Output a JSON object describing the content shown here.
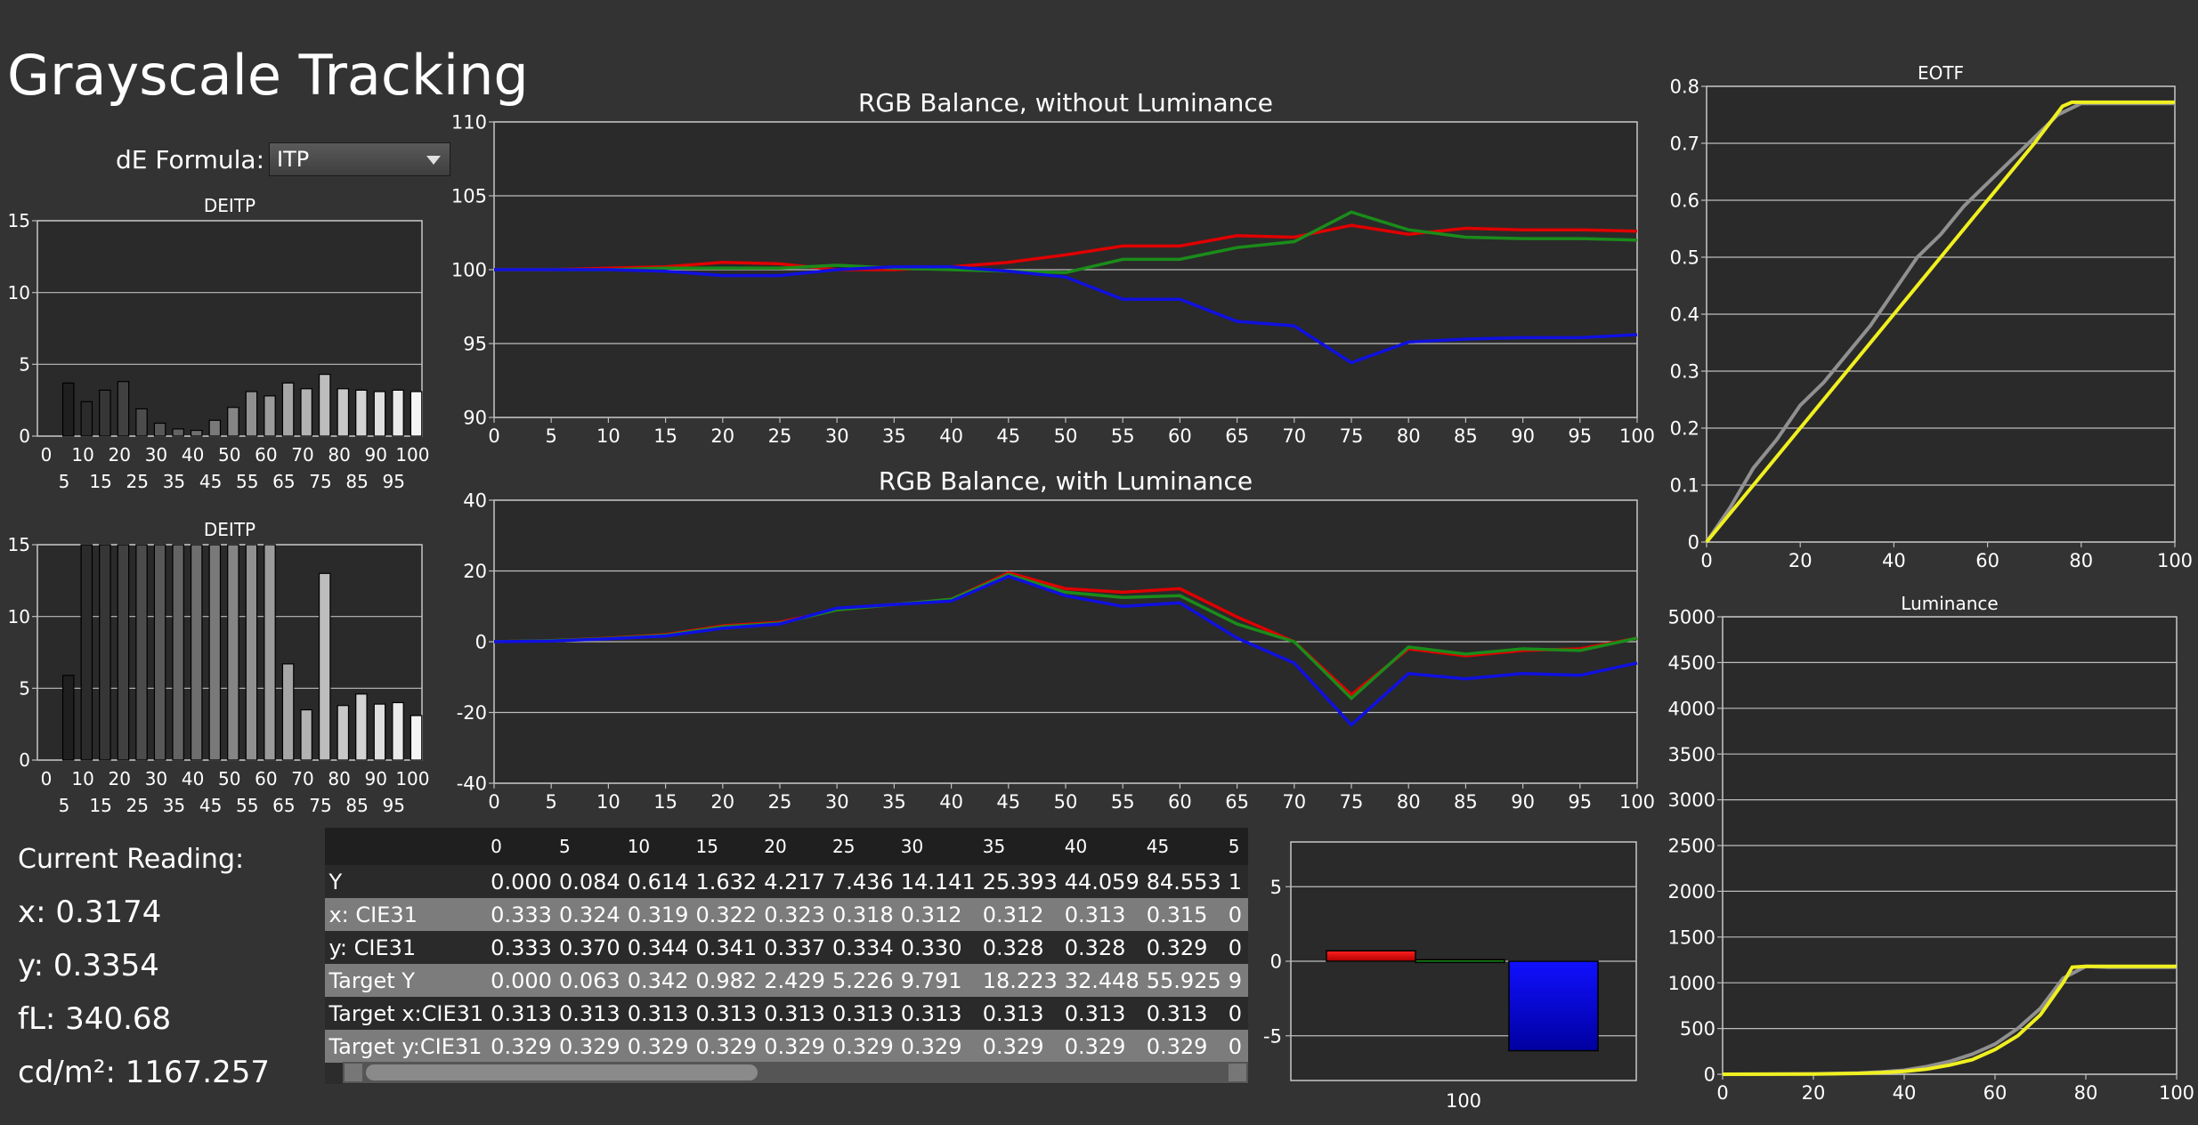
{
  "page": {
    "title": "Grayscale Tracking"
  },
  "de_formula": {
    "label": "dE Formula:",
    "value": "ITP"
  },
  "colors": {
    "red": "#e00000",
    "green": "#1a8c1a",
    "blue": "#1010e0",
    "yellow": "#f0f020",
    "gray": "#909090"
  },
  "current_reading": {
    "label": "Current Reading:",
    "x": "x: 0.3174",
    "y": "y: 0.3354",
    "fl": "fL: 340.68",
    "cdm2": "cd/m²: 1167.257"
  },
  "table": {
    "columns": [
      "0",
      "5",
      "10",
      "15",
      "20",
      "25",
      "30",
      "35",
      "40",
      "45",
      "5"
    ],
    "rows": [
      {
        "label": "Y",
        "values": [
          "0.000",
          "0.084",
          "0.614",
          "1.632",
          "4.217",
          "7.436",
          "14.141",
          "25.393",
          "44.059",
          "84.553",
          "1"
        ]
      },
      {
        "label": "x: CIE31",
        "values": [
          "0.333",
          "0.324",
          "0.319",
          "0.322",
          "0.323",
          "0.318",
          "0.312",
          "0.312",
          "0.313",
          "0.315",
          "0"
        ]
      },
      {
        "label": "y: CIE31",
        "values": [
          "0.333",
          "0.370",
          "0.344",
          "0.341",
          "0.337",
          "0.334",
          "0.330",
          "0.328",
          "0.328",
          "0.329",
          "0"
        ]
      },
      {
        "label": "Target Y",
        "values": [
          "0.000",
          "0.063",
          "0.342",
          "0.982",
          "2.429",
          "5.226",
          "9.791",
          "18.223",
          "32.448",
          "55.925",
          "9"
        ]
      },
      {
        "label": "Target x:CIE31",
        "values": [
          "0.313",
          "0.313",
          "0.313",
          "0.313",
          "0.313",
          "0.313",
          "0.313",
          "0.313",
          "0.313",
          "0.313",
          "0"
        ]
      },
      {
        "label": "Target y:CIE31",
        "values": [
          "0.329",
          "0.329",
          "0.329",
          "0.329",
          "0.329",
          "0.329",
          "0.329",
          "0.329",
          "0.329",
          "0.329",
          "0"
        ]
      }
    ]
  },
  "chart_data": [
    {
      "id": "deitp1",
      "type": "bar",
      "title": "DEITP",
      "x": [
        0,
        5,
        10,
        15,
        20,
        25,
        30,
        35,
        40,
        45,
        50,
        55,
        60,
        65,
        70,
        75,
        80,
        85,
        90,
        95,
        100
      ],
      "xticks_top": [
        "0",
        "10",
        "20",
        "30",
        "40",
        "50",
        "60",
        "70",
        "80",
        "90",
        "100"
      ],
      "xticks_bottom": [
        "5",
        "15",
        "25",
        "35",
        "45",
        "55",
        "65",
        "75",
        "85",
        "95"
      ],
      "yticks": [
        "0",
        "5",
        "10",
        "15"
      ],
      "ylim": [
        0,
        15
      ],
      "values": [
        0,
        3.7,
        2.4,
        3.2,
        3.8,
        1.9,
        0.9,
        0.5,
        0.4,
        1.1,
        2.0,
        3.1,
        2.8,
        3.7,
        3.3,
        4.3,
        3.3,
        3.2,
        3.1,
        3.2,
        3.1
      ]
    },
    {
      "id": "deitp2",
      "type": "bar",
      "title": "DEITP",
      "x": [
        0,
        5,
        10,
        15,
        20,
        25,
        30,
        35,
        40,
        45,
        50,
        55,
        60,
        65,
        70,
        75,
        80,
        85,
        90,
        95,
        100
      ],
      "xticks_top": [
        "0",
        "10",
        "20",
        "30",
        "40",
        "50",
        "60",
        "70",
        "80",
        "90",
        "100"
      ],
      "xticks_bottom": [
        "5",
        "15",
        "25",
        "35",
        "45",
        "55",
        "65",
        "75",
        "85",
        "95"
      ],
      "yticks": [
        "0",
        "5",
        "10",
        "15"
      ],
      "ylim": [
        0,
        15
      ],
      "values": [
        0,
        5.9,
        15,
        15,
        15,
        15,
        15,
        15,
        15,
        15,
        15,
        15,
        15,
        6.7,
        3.5,
        13,
        3.8,
        4.6,
        3.9,
        4.0,
        3.1
      ]
    },
    {
      "id": "rgb1",
      "type": "line",
      "title": "RGB Balance, without Luminance",
      "xticks": [
        "0",
        "5",
        "10",
        "15",
        "20",
        "25",
        "30",
        "35",
        "40",
        "45",
        "50",
        "55",
        "60",
        "65",
        "70",
        "75",
        "80",
        "85",
        "90",
        "95",
        "100"
      ],
      "yticks": [
        "90",
        "95",
        "100",
        "105",
        "110"
      ],
      "xlim": [
        0,
        100
      ],
      "ylim": [
        90,
        110
      ],
      "x": [
        0,
        5,
        10,
        15,
        20,
        25,
        30,
        35,
        40,
        45,
        50,
        55,
        60,
        65,
        70,
        75,
        80,
        85,
        90,
        95,
        100
      ],
      "series": [
        {
          "color": "#e00000",
          "values": [
            100,
            100,
            100.1,
            100.2,
            100.5,
            100.4,
            100,
            100,
            100.2,
            100.5,
            101,
            101.6,
            101.6,
            102.3,
            102.2,
            103,
            102.4,
            102.8,
            102.7,
            102.7,
            102.6
          ]
        },
        {
          "color": "#1a8c1a",
          "values": [
            100,
            100,
            100,
            100.1,
            100.1,
            100.1,
            100.3,
            100.1,
            100,
            99.9,
            99.8,
            100.7,
            100.7,
            101.5,
            101.9,
            103.9,
            102.7,
            102.2,
            102.1,
            102.1,
            102
          ]
        },
        {
          "color": "#1010e0",
          "values": [
            100,
            100,
            100,
            99.9,
            99.6,
            99.6,
            100,
            100.2,
            100.2,
            99.9,
            99.5,
            98,
            98,
            96.5,
            96.2,
            93.7,
            95.1,
            95.3,
            95.4,
            95.4,
            95.6
          ]
        }
      ]
    },
    {
      "id": "rgb2",
      "type": "line",
      "title": "RGB Balance, with Luminance",
      "xticks": [
        "0",
        "5",
        "10",
        "15",
        "20",
        "25",
        "30",
        "35",
        "40",
        "45",
        "50",
        "55",
        "60",
        "65",
        "70",
        "75",
        "80",
        "85",
        "90",
        "95",
        "100"
      ],
      "yticks": [
        "-40",
        "-20",
        "0",
        "20",
        "40"
      ],
      "xlim": [
        0,
        100
      ],
      "ylim": [
        -40,
        40
      ],
      "x": [
        0,
        5,
        10,
        15,
        20,
        25,
        30,
        35,
        40,
        45,
        50,
        55,
        60,
        65,
        70,
        75,
        80,
        85,
        90,
        95,
        100
      ],
      "series": [
        {
          "color": "#e00000",
          "values": [
            0,
            0.3,
            1,
            2,
            4.5,
            5.5,
            9,
            10.5,
            12,
            19.5,
            15,
            14,
            15,
            7,
            0,
            -15,
            -2,
            -4,
            -2.5,
            -2,
            1
          ]
        },
        {
          "color": "#1a8c1a",
          "values": [
            0,
            0.3,
            0.9,
            1.8,
            4.2,
            5.2,
            9,
            10.5,
            12,
            19,
            14,
            12.5,
            13,
            5,
            0,
            -16,
            -1.5,
            -3.5,
            -2,
            -2.5,
            1
          ]
        },
        {
          "color": "#1010e0",
          "values": [
            0,
            0.2,
            0.8,
            1.6,
            3.8,
            5,
            9.5,
            10.5,
            11.5,
            18.5,
            13,
            10,
            11,
            1,
            -6,
            -23.5,
            -9,
            -10.5,
            -9,
            -9.5,
            -6
          ]
        }
      ]
    },
    {
      "id": "bars",
      "type": "bar",
      "title": "",
      "categories": [
        "100"
      ],
      "yticks": [
        "-5",
        "0",
        "5"
      ],
      "ylim": [
        -8,
        8
      ],
      "series": [
        {
          "color": "#e00000",
          "values": [
            0.7
          ]
        },
        {
          "color": "#1a8c1a",
          "values": [
            0.1
          ]
        },
        {
          "color": "#1010e0",
          "values": [
            -6
          ]
        }
      ]
    },
    {
      "id": "eotf",
      "type": "line",
      "title": "EOTF",
      "xticks": [
        "0",
        "20",
        "40",
        "60",
        "80",
        "100"
      ],
      "yticks": [
        "0",
        "0.1",
        "0.2",
        "0.3",
        "0.4",
        "0.5",
        "0.6",
        "0.7",
        "0.8"
      ],
      "xlim": [
        0,
        100
      ],
      "ylim": [
        0,
        0.8
      ],
      "series": [
        {
          "color": "#909090",
          "x": [
            0,
            5,
            10,
            15,
            20,
            25,
            30,
            35,
            40,
            45,
            50,
            55,
            60,
            65,
            70,
            75,
            80,
            85,
            90,
            95,
            100
          ],
          "values": [
            0,
            0.06,
            0.13,
            0.18,
            0.24,
            0.28,
            0.33,
            0.38,
            0.44,
            0.5,
            0.54,
            0.59,
            0.63,
            0.67,
            0.71,
            0.75,
            0.77,
            0.77,
            0.77,
            0.77,
            0.77
          ]
        },
        {
          "color": "#f0f020",
          "x": [
            0,
            10,
            20,
            30,
            40,
            50,
            60,
            70,
            76,
            78,
            80,
            90,
            100
          ],
          "values": [
            0,
            0.1,
            0.2,
            0.3,
            0.4,
            0.5,
            0.6,
            0.7,
            0.765,
            0.772,
            0.772,
            0.772,
            0.772
          ]
        }
      ]
    },
    {
      "id": "luminance",
      "type": "line",
      "title": "Luminance",
      "xticks": [
        "0",
        "20",
        "40",
        "60",
        "80",
        "100"
      ],
      "yticks": [
        "0",
        "500",
        "1000",
        "1500",
        "2000",
        "2500",
        "3000",
        "3500",
        "4000",
        "4500",
        "5000"
      ],
      "xlim": [
        0,
        100
      ],
      "ylim": [
        0,
        5000
      ],
      "series": [
        {
          "color": "#909090",
          "x": [
            0,
            10,
            20,
            30,
            35,
            40,
            45,
            50,
            55,
            60,
            65,
            70,
            75,
            80,
            85,
            90,
            95,
            100
          ],
          "values": [
            0,
            1,
            4,
            14,
            25,
            44,
            85,
            140,
            220,
            330,
            500,
            720,
            1050,
            1180,
            1170,
            1170,
            1170,
            1170
          ]
        },
        {
          "color": "#f0f020",
          "x": [
            0,
            10,
            20,
            30,
            35,
            40,
            45,
            50,
            55,
            60,
            65,
            70,
            75,
            77,
            80,
            85,
            90,
            95,
            100
          ],
          "values": [
            0,
            1,
            3,
            10,
            18,
            32,
            56,
            100,
            160,
            270,
            420,
            650,
            1000,
            1170,
            1180,
            1180,
            1180,
            1180,
            1180
          ]
        }
      ]
    }
  ]
}
